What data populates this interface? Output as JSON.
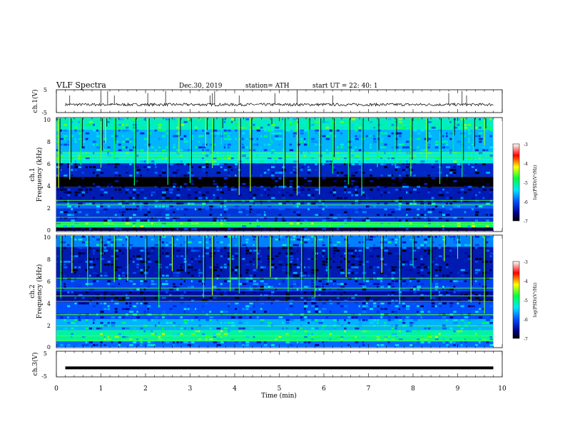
{
  "header": {
    "title": "VLF  Spectra",
    "date": "Dec.30, 2019",
    "station": "station= ATH",
    "start": "start  UT  =   22: 40: 1"
  },
  "chart_data": [
    {
      "type": "line",
      "name": "ch1-waveform",
      "ylabel": "ch.1(V)",
      "yticks": [
        "5",
        "-5"
      ],
      "ylim": [
        -5,
        5
      ],
      "xlim": [
        0,
        10
      ],
      "baseline": -1.5,
      "noise": 0.6,
      "spike_times": [
        0.3,
        1.0,
        1.15,
        1.3,
        2.05,
        2.45,
        3.45,
        3.5,
        3.55,
        4.1,
        4.9,
        5.4,
        6.2,
        8.8,
        9.1,
        9.2
      ]
    },
    {
      "type": "heatmap",
      "name": "ch1-spectrogram",
      "ylabel": "ch.1",
      "ylabel2": "Frequency (kHz)",
      "yticks": [
        "10",
        "8",
        "6",
        "4",
        "2",
        "0"
      ],
      "ylim": [
        0,
        10
      ],
      "xlim": [
        0,
        9.8
      ],
      "colorbar": {
        "label": "log(PSD)(V²/Hz)",
        "ticks": [
          "-3",
          "-4",
          "-5",
          "-6",
          "-7"
        ],
        "range": [
          -7,
          -3
        ]
      },
      "bands": [
        {
          "from": 9.0,
          "to": 10.0,
          "level": -5.2
        },
        {
          "from": 7.0,
          "to": 9.0,
          "level": -5.6
        },
        {
          "from": 6.0,
          "to": 7.0,
          "level": -5.3
        },
        {
          "from": 4.8,
          "to": 6.0,
          "level": -6.3
        },
        {
          "from": 3.9,
          "to": 4.8,
          "level": -7.0
        },
        {
          "from": 2.5,
          "to": 3.9,
          "level": -6.4
        },
        {
          "from": 2.0,
          "to": 2.5,
          "level": -5.9
        },
        {
          "from": 0.8,
          "to": 2.0,
          "level": -6.2
        },
        {
          "from": 0.3,
          "to": 0.8,
          "level": -5.0
        },
        {
          "from": 0.0,
          "to": 0.3,
          "level": -6.8
        }
      ],
      "lines_khz": [
        0.55,
        0.75,
        1.2,
        2.3,
        2.7,
        6.35,
        6.65,
        6.9
      ],
      "burst_times": [
        0.05,
        0.3,
        0.55,
        1.0,
        1.1,
        1.3,
        1.75,
        2.05,
        2.5,
        2.75,
        3.0,
        3.35,
        3.5,
        3.7,
        4.1,
        4.35,
        4.8,
        5.1,
        5.4,
        5.65,
        5.9,
        6.2,
        6.55,
        6.85,
        7.2,
        7.6,
        7.95,
        8.3,
        8.6,
        8.9,
        9.1,
        9.35,
        9.6
      ]
    },
    {
      "type": "heatmap",
      "name": "ch2-spectrogram",
      "ylabel": "ch.2",
      "ylabel2": "Frequency (kHz)",
      "yticks": [
        "10",
        "8",
        "6",
        "4",
        "2",
        "0"
      ],
      "ylim": [
        0,
        10
      ],
      "xlim": [
        0,
        9.8
      ],
      "colorbar": {
        "label": "log(PSD)(V²/Hz)",
        "ticks": [
          "-3",
          "-4",
          "-5",
          "-6",
          "-7"
        ],
        "range": [
          -7,
          -3
        ]
      },
      "bands": [
        {
          "from": 9.0,
          "to": 10.0,
          "level": -5.8
        },
        {
          "from": 6.2,
          "to": 9.0,
          "level": -6.4
        },
        {
          "from": 5.0,
          "to": 6.2,
          "level": -6.1
        },
        {
          "from": 4.0,
          "to": 5.0,
          "level": -6.5
        },
        {
          "from": 2.5,
          "to": 4.0,
          "level": -6.0
        },
        {
          "from": 1.5,
          "to": 2.5,
          "level": -5.6
        },
        {
          "from": 0.5,
          "to": 1.5,
          "level": -5.1
        },
        {
          "from": 0.0,
          "to": 0.5,
          "level": -5.9
        }
      ],
      "lines_khz": [
        0.6,
        1.0,
        1.9,
        2.9,
        4.1,
        4.6,
        5.3,
        6.2
      ],
      "burst_times": [
        0.1,
        0.35,
        0.7,
        1.0,
        1.3,
        1.6,
        2.0,
        2.3,
        2.6,
        2.9,
        3.3,
        3.5,
        3.9,
        4.1,
        4.5,
        4.8,
        5.2,
        5.5,
        5.8,
        6.1,
        6.5,
        6.9,
        7.3,
        7.7,
        8.0,
        8.4,
        8.7,
        9.0,
        9.3,
        9.6
      ]
    },
    {
      "type": "line",
      "name": "ch3-waveform",
      "ylabel": "ch.3(V)",
      "yticks": [
        "5",
        "-5"
      ],
      "ylim": [
        -5,
        5
      ],
      "xlim": [
        0,
        10
      ],
      "baseline": -1.5
    }
  ],
  "xaxis": {
    "label": "Time  (min)",
    "ticks": [
      "0",
      "1",
      "2",
      "3",
      "4",
      "5",
      "6",
      "7",
      "8",
      "9",
      "10"
    ]
  }
}
